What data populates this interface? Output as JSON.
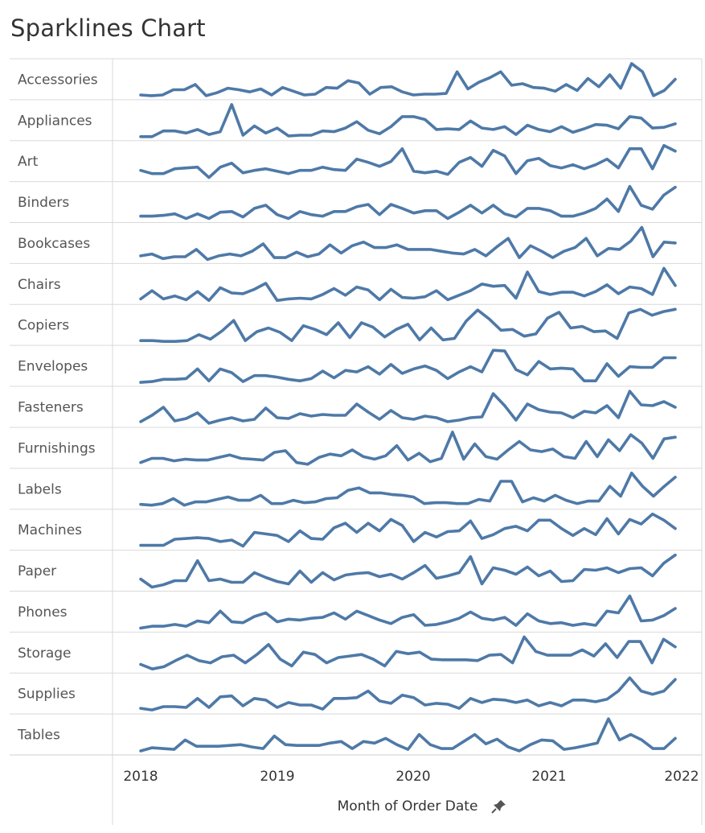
{
  "title": "Sparklines Chart",
  "colors": {
    "line": "#4e79a7",
    "grid": "#d9d9d9",
    "border": "#cfcfcf"
  },
  "x_axis": {
    "title": "Month of Order Date",
    "ticks": [
      "2018",
      "2019",
      "2020",
      "2021",
      "2022"
    ],
    "pin_icon": "pin-icon"
  },
  "chart_data": {
    "type": "line",
    "layout": "sparklines",
    "xlabel": "Month of Order Date",
    "x_start": "2018-01",
    "x_end": "2021-12",
    "x_ticks": [
      "2018",
      "2019",
      "2020",
      "2021",
      "2022"
    ],
    "series": [
      {
        "name": "Accessories",
        "values": [
          4,
          3,
          4,
          11,
          11,
          18,
          3,
          7,
          13,
          11,
          8,
          12,
          4,
          14,
          9,
          4,
          5,
          14,
          13,
          23,
          20,
          5,
          14,
          15,
          8,
          4,
          5,
          5,
          6,
          35,
          12,
          21,
          27,
          35,
          17,
          19,
          14,
          13,
          9,
          18,
          10,
          26,
          15,
          31,
          13,
          46,
          35,
          3,
          10,
          25
        ]
      },
      {
        "name": "Appliances",
        "values": [
          3,
          3,
          11,
          11,
          8,
          13,
          6,
          10,
          48,
          5,
          18,
          8,
          15,
          4,
          5,
          5,
          11,
          10,
          15,
          24,
          12,
          7,
          17,
          31,
          31,
          27,
          13,
          14,
          13,
          25,
          15,
          13,
          17,
          6,
          19,
          13,
          10,
          17,
          9,
          14,
          20,
          19,
          14,
          31,
          29,
          15,
          16,
          21
        ]
      },
      {
        "name": "Art",
        "values": [
          14,
          10,
          10,
          16,
          17,
          18,
          5,
          18,
          23,
          11,
          14,
          16,
          13,
          10,
          14,
          14,
          18,
          15,
          14,
          28,
          24,
          19,
          25,
          41,
          13,
          11,
          13,
          9,
          24,
          30,
          19,
          39,
          32,
          10,
          26,
          29,
          20,
          17,
          21,
          16,
          21,
          28,
          17,
          41,
          41,
          16,
          45,
          38
        ]
      },
      {
        "name": "Binders",
        "values": [
          6,
          6,
          7,
          9,
          3,
          9,
          3,
          11,
          12,
          5,
          16,
          20,
          8,
          3,
          12,
          8,
          6,
          12,
          12,
          18,
          21,
          8,
          21,
          16,
          10,
          13,
          13,
          3,
          11,
          20,
          10,
          20,
          9,
          5,
          16,
          16,
          13,
          6,
          6,
          10,
          16,
          28,
          12,
          44,
          20,
          15,
          33,
          43
        ]
      },
      {
        "name": "Bookcases",
        "values": [
          6,
          8,
          3,
          5,
          5,
          13,
          2,
          6,
          8,
          6,
          11,
          19,
          4,
          4,
          10,
          5,
          8,
          18,
          9,
          17,
          21,
          15,
          15,
          18,
          13,
          13,
          13,
          11,
          9,
          8,
          13,
          6,
          16,
          25,
          4,
          17,
          11,
          4,
          11,
          15,
          25,
          6,
          14,
          13,
          22,
          37,
          5,
          21,
          20
        ]
      },
      {
        "name": "Chairs",
        "values": [
          4,
          15,
          4,
          8,
          3,
          14,
          2,
          19,
          12,
          11,
          17,
          25,
          2,
          4,
          5,
          4,
          10,
          18,
          9,
          20,
          16,
          3,
          17,
          6,
          5,
          7,
          15,
          3,
          9,
          15,
          24,
          21,
          22,
          5,
          40,
          14,
          10,
          13,
          13,
          8,
          14,
          23,
          11,
          20,
          18,
          10,
          45,
          22
        ]
      },
      {
        "name": "Copiers",
        "values": [
          3,
          3,
          2,
          2,
          3,
          11,
          5,
          16,
          30,
          3,
          15,
          20,
          14,
          3,
          23,
          18,
          11,
          27,
          7,
          27,
          21,
          8,
          18,
          25,
          4,
          20,
          4,
          6,
          29,
          44,
          32,
          17,
          18,
          9,
          12,
          33,
          41,
          20,
          22,
          15,
          16,
          6,
          40,
          45,
          37,
          42,
          45
        ]
      },
      {
        "name": "Envelopes",
        "values": [
          3,
          4,
          7,
          7,
          8,
          21,
          5,
          21,
          16,
          4,
          12,
          12,
          10,
          7,
          5,
          8,
          18,
          9,
          19,
          17,
          24,
          14,
          27,
          15,
          21,
          25,
          19,
          8,
          17,
          24,
          17,
          46,
          45,
          20,
          13,
          31,
          21,
          22,
          21,
          5,
          5,
          28,
          11,
          24,
          23,
          23,
          36,
          36
        ]
      },
      {
        "name": "Fasteners",
        "values": [
          8,
          16,
          26,
          9,
          12,
          19,
          6,
          10,
          13,
          9,
          11,
          25,
          13,
          12,
          18,
          15,
          17,
          16,
          16,
          30,
          20,
          11,
          22,
          13,
          11,
          15,
          13,
          8,
          10,
          13,
          14,
          43,
          28,
          10,
          30,
          23,
          20,
          19,
          13,
          21,
          19,
          28,
          13,
          46,
          29,
          28,
          33,
          26
        ]
      },
      {
        "name": "Furnishings",
        "values": [
          5,
          10,
          10,
          7,
          9,
          8,
          8,
          11,
          14,
          10,
          9,
          8,
          17,
          19,
          5,
          3,
          11,
          15,
          13,
          20,
          12,
          9,
          13,
          25,
          8,
          16,
          6,
          10,
          41,
          9,
          27,
          12,
          9,
          20,
          30,
          20,
          18,
          21,
          12,
          10,
          30,
          12,
          32,
          19,
          38,
          28,
          10,
          33,
          35
        ]
      },
      {
        "name": "Labels",
        "values": [
          3,
          2,
          4,
          10,
          2,
          6,
          6,
          9,
          12,
          8,
          8,
          14,
          4,
          4,
          8,
          5,
          6,
          10,
          11,
          20,
          23,
          17,
          17,
          15,
          14,
          12,
          4,
          5,
          5,
          4,
          4,
          9,
          7,
          31,
          31,
          6,
          11,
          7,
          14,
          8,
          4,
          7,
          7,
          25,
          13,
          41,
          25,
          13,
          25,
          36
        ]
      },
      {
        "name": "Machines",
        "values": [
          3,
          3,
          3,
          11,
          12,
          13,
          12,
          8,
          10,
          2,
          20,
          18,
          16,
          8,
          22,
          12,
          11,
          26,
          32,
          20,
          32,
          22,
          37,
          29,
          8,
          20,
          14,
          21,
          22,
          35,
          12,
          17,
          25,
          28,
          22,
          36,
          36,
          25,
          16,
          25,
          17,
          38,
          18,
          37,
          31,
          44,
          36,
          25
        ]
      },
      {
        "name": "Paper",
        "values": [
          12,
          2,
          5,
          10,
          10,
          35,
          10,
          12,
          8,
          8,
          20,
          14,
          9,
          6,
          22,
          8,
          20,
          11,
          17,
          19,
          20,
          15,
          18,
          12,
          20,
          29,
          13,
          16,
          20,
          40,
          6,
          26,
          23,
          18,
          27,
          16,
          22,
          9,
          10,
          24,
          23,
          26,
          20,
          25,
          26,
          16,
          32,
          42
        ]
      },
      {
        "name": "Phones",
        "values": [
          3,
          5,
          5,
          7,
          5,
          11,
          9,
          22,
          10,
          9,
          16,
          20,
          10,
          13,
          12,
          14,
          15,
          20,
          13,
          22,
          17,
          12,
          8,
          15,
          18,
          6,
          7,
          10,
          14,
          21,
          14,
          12,
          15,
          6,
          19,
          11,
          8,
          9,
          6,
          8,
          6,
          22,
          20,
          39,
          11,
          12,
          17,
          25
        ]
      },
      {
        "name": "Storage",
        "values": [
          8,
          2,
          5,
          13,
          20,
          13,
          10,
          18,
          20,
          10,
          21,
          34,
          15,
          6,
          24,
          21,
          10,
          17,
          19,
          21,
          15,
          6,
          25,
          22,
          24,
          15,
          14,
          14,
          14,
          13,
          20,
          21,
          10,
          44,
          25,
          20,
          20,
          20,
          27,
          19,
          35,
          17,
          38,
          38,
          10,
          41,
          31
        ]
      },
      {
        "name": "Supplies",
        "values": [
          3,
          1,
          5,
          5,
          4,
          15,
          4,
          17,
          18,
          6,
          15,
          13,
          4,
          10,
          7,
          7,
          2,
          15,
          15,
          16,
          24,
          12,
          9,
          19,
          16,
          7,
          9,
          8,
          3,
          15,
          10,
          14,
          13,
          10,
          13,
          6,
          10,
          6,
          13,
          13,
          11,
          14,
          24,
          40,
          24,
          20,
          24,
          38
        ]
      },
      {
        "name": "Tables",
        "values": [
          2,
          6,
          5,
          4,
          16,
          8,
          8,
          8,
          9,
          10,
          7,
          5,
          21,
          10,
          9,
          9,
          9,
          12,
          14,
          5,
          14,
          12,
          18,
          10,
          4,
          23,
          10,
          5,
          5,
          14,
          23,
          11,
          17,
          7,
          2,
          10,
          16,
          15,
          4,
          6,
          9,
          12,
          43,
          16,
          23,
          16,
          5,
          5,
          18
        ]
      }
    ]
  }
}
